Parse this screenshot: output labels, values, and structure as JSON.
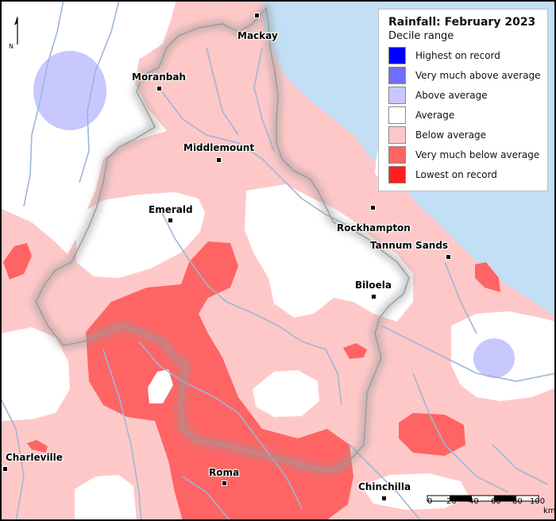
{
  "map": {
    "title": "Rainfall: February 2023",
    "subtitle": "Decile range"
  },
  "legend": [
    {
      "label": "Highest on record",
      "color": "#0000ff"
    },
    {
      "label": "Very much above average",
      "color": "#6f6fff"
    },
    {
      "label": "Above average",
      "color": "#c8c8ff"
    },
    {
      "label": "Average",
      "color": "#ffffff"
    },
    {
      "label": "Below average",
      "color": "#ffc8c8"
    },
    {
      "label": "Very much below average",
      "color": "#ff6464"
    },
    {
      "label": "Lowest on record",
      "color": "#ff1f1f"
    }
  ],
  "colors": {
    "sea": "#c3dff5",
    "river": "#9fb6d6",
    "basin_shadow": "#9a9a9a"
  },
  "towns": [
    {
      "name": "Mackay"
    },
    {
      "name": "Moranbah"
    },
    {
      "name": "Middlemount"
    },
    {
      "name": "Emerald"
    },
    {
      "name": "Rockhampton"
    },
    {
      "name": "Tannum Sands"
    },
    {
      "name": "Biloela"
    },
    {
      "name": "Charleville"
    },
    {
      "name": "Roma"
    },
    {
      "name": "Chinchilla"
    }
  ],
  "north_arrow": {
    "label": "N",
    "icon": "north-arrow-icon"
  },
  "scale_bar": {
    "ticks": [
      "0",
      "20",
      "40",
      "60",
      "80",
      "100"
    ],
    "unit": "km"
  }
}
